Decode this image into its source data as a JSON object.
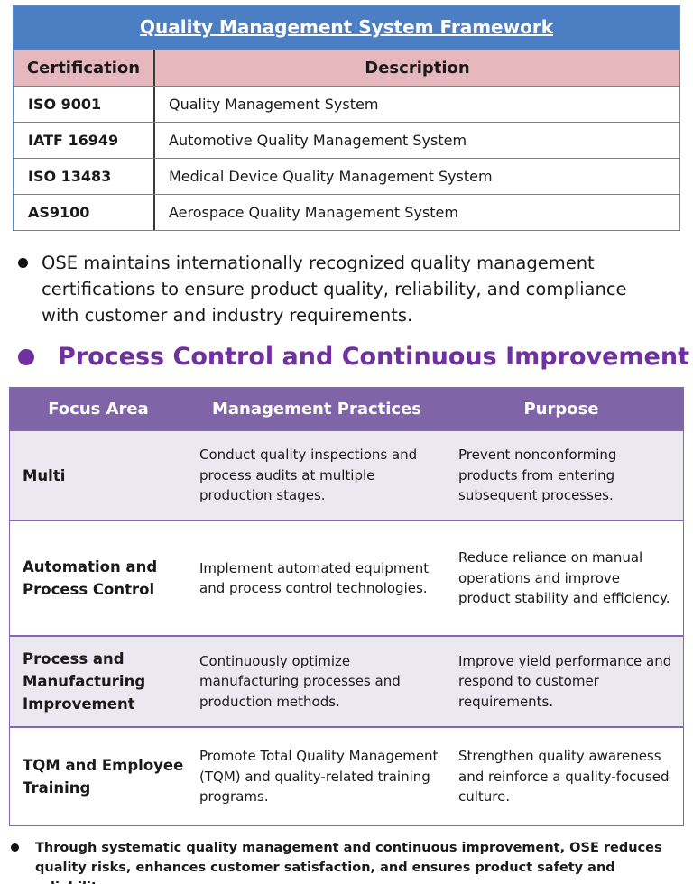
{
  "certifications": {
    "title": "Quality Management System Framework",
    "headers": {
      "certification": "Certification",
      "description": "Description"
    },
    "rows": [
      {
        "certification": "ISO 9001",
        "description": "Quality Management System"
      },
      {
        "certification": "IATF 16949",
        "description": "Automotive Quality Management System"
      },
      {
        "certification": "ISO 13483",
        "description": "Medical Device Quality Management System"
      },
      {
        "certification": "AS9100",
        "description": "Aerospace Quality Management System"
      }
    ]
  },
  "bullet_certifications": "OSE maintains internationally recognized quality management certifications to ensure product quality, reliability, and compliance with customer and industry requirements.",
  "section_title": "Process Control and Continuous Improvement",
  "process": {
    "headers": {
      "focus": "Focus Area",
      "practices": "Management Practices",
      "purpose": "Purpose"
    },
    "rows": [
      {
        "focus": "Multi",
        "practices": "Conduct quality inspections and process audits at multiple production stages.",
        "purpose": "Prevent nonconforming products from entering subsequent processes."
      },
      {
        "focus": "Automation and Process Control",
        "practices": "Implement automated equipment and process control technologies.",
        "purpose": "Reduce reliance on manual operations and improve product stability and efficiency."
      },
      {
        "focus": "Process and Manufacturing Improvement",
        "practices": "Continuously optimize manufacturing processes and production methods.",
        "purpose": "Improve yield performance and respond to customer requirements."
      },
      {
        "focus": "TQM and Employee Training",
        "practices": "Promote Total Quality Management (TQM) and quality-related training programs.",
        "purpose": "Strengthen quality awareness and reinforce a quality-focused culture."
      }
    ]
  },
  "bullet_summary": "Through systematic quality management and continuous improvement, OSE reduces quality risks, enhances customer satisfaction, and ensures product safety and reliability.",
  "colors": {
    "table1_header": "#4c7ec4",
    "table1_subheader": "#e6b8bd",
    "table2_header": "#8064a8",
    "section_accent": "#7030a0"
  }
}
